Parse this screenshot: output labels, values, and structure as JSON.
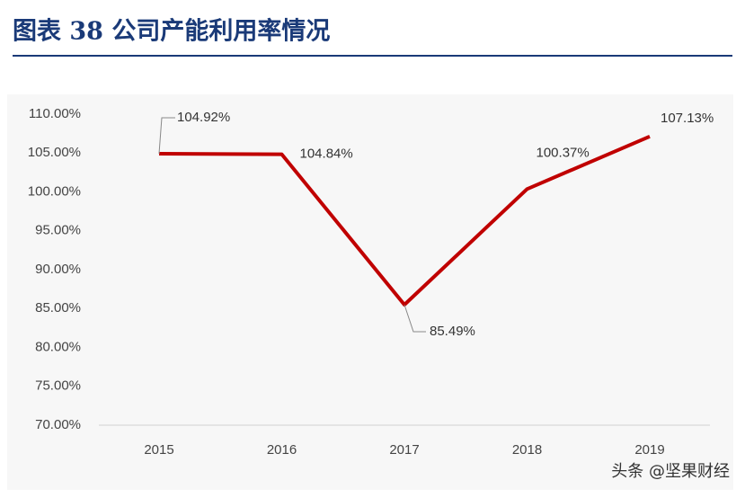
{
  "chart_data": {
    "type": "line",
    "title": "图表 38  公司产能利用率情况",
    "categories": [
      "2015",
      "2016",
      "2017",
      "2018",
      "2019"
    ],
    "series": [
      {
        "name": "产能利用率",
        "color": "#c00000",
        "values": [
          104.92,
          104.84,
          85.49,
          100.37,
          107.13
        ],
        "value_labels": [
          "104.92%",
          "104.84%",
          "85.49%",
          "100.37%",
          "107.13%"
        ]
      }
    ],
    "ylim": [
      70,
      110
    ],
    "yticks": [
      {
        "value": 70,
        "label": "70.00%"
      },
      {
        "value": 75,
        "label": "75.00%"
      },
      {
        "value": 80,
        "label": "80.00%"
      },
      {
        "value": 85,
        "label": "85.00%"
      },
      {
        "value": 90,
        "label": "90.00%"
      },
      {
        "value": 95,
        "label": "95.00%"
      },
      {
        "value": 100,
        "label": "100.00%"
      },
      {
        "value": 105,
        "label": "105.00%"
      },
      {
        "value": 110,
        "label": "110.00%"
      }
    ],
    "grid": false,
    "watermark": "头条 @坚果财经"
  }
}
